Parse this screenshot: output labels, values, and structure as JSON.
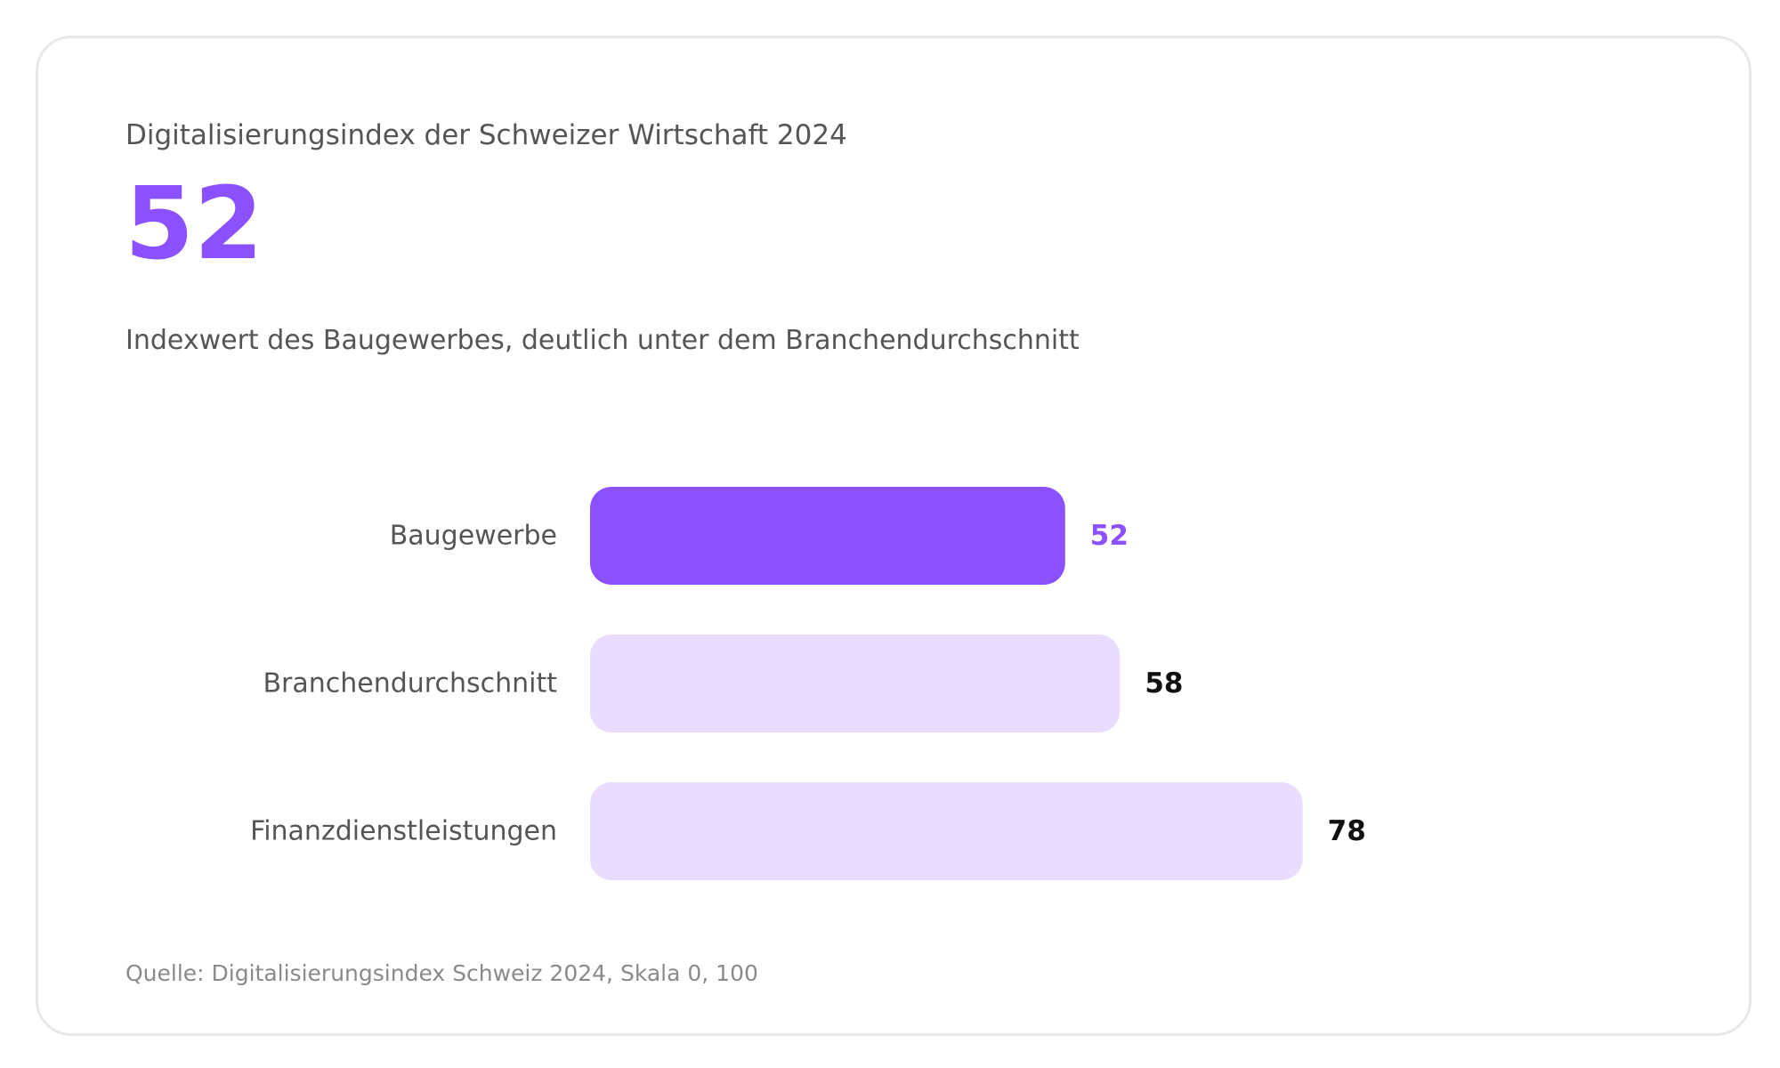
{
  "card": {
    "title": "Digitalisierungsindex der Schweizer Wirtschaft 2024",
    "kpi_value": "52",
    "subtitle": "Indexwert des Baugewerbes, deutlich unter dem Branchendurchschnitt",
    "source": "Quelle: Digitalisierungsindex Schweiz 2024, Skala 0, 100"
  },
  "colors": {
    "accent": "#8b50ff",
    "bar_muted": "#e9dcff",
    "label_text": "#555555",
    "value_text": "#111111"
  },
  "chart_data": {
    "type": "bar",
    "orientation": "horizontal",
    "categories": [
      "Baugewerbe",
      "Branchendurchschnitt",
      "Finanzdienstleistungen"
    ],
    "values": [
      52,
      58,
      78
    ],
    "highlight": "Baugewerbe",
    "xlim": [
      0,
      100
    ],
    "grid": false,
    "legend": "none"
  }
}
